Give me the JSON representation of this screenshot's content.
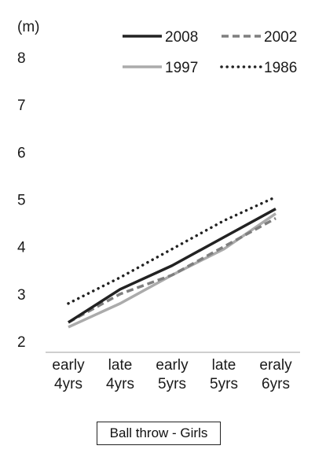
{
  "chart_data": {
    "type": "line",
    "categories": [
      [
        "early",
        "4yrs"
      ],
      [
        "late",
        "4yrs"
      ],
      [
        "early",
        "5yrs"
      ],
      [
        "late",
        "5yrs"
      ],
      [
        "eraly",
        "6yrs"
      ]
    ],
    "y_unit": "(m)",
    "ylim": [
      2,
      8
    ],
    "y_ticks": [
      2,
      3,
      4,
      5,
      6,
      7,
      8
    ],
    "grid": false,
    "legend_position": "top-right",
    "series": [
      {
        "name": "2008",
        "values": [
          2.4,
          3.1,
          3.6,
          4.2,
          4.8
        ],
        "color": "#222222",
        "style": "solid"
      },
      {
        "name": "2002",
        "values": [
          2.4,
          3.0,
          3.4,
          4.0,
          4.6
        ],
        "color": "#7f7f7f",
        "style": "dashed"
      },
      {
        "name": "1997",
        "values": [
          2.3,
          2.8,
          3.4,
          3.95,
          4.7
        ],
        "color": "#ababab",
        "style": "solid"
      },
      {
        "name": "1986",
        "values": [
          2.8,
          3.35,
          3.95,
          4.55,
          5.05
        ],
        "color": "#222222",
        "style": "dotted"
      }
    ],
    "caption": "Ball throw - Girls"
  }
}
